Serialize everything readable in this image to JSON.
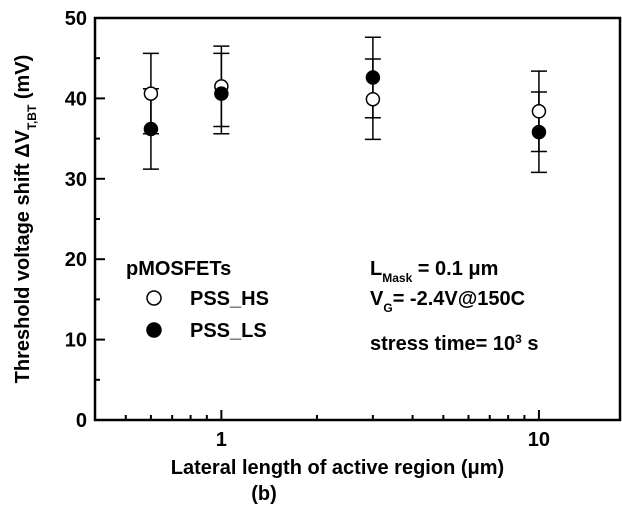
{
  "chart_data": {
    "type": "scatter",
    "xlabel": "Lateral length of active region (μm)",
    "ylabel": [
      {
        "text": "Threshold voltage shift ΔV"
      },
      {
        "text": "T,BT",
        "style": "sub"
      },
      {
        "text": " (mV)"
      }
    ],
    "caption": "(b)",
    "legend_title": "pMOSFETs",
    "xlog": true,
    "xlim": [
      0.4,
      18
    ],
    "ylim": [
      0,
      50
    ],
    "xticks": [
      1,
      10
    ],
    "xminor_ticks": [
      0.4,
      0.5,
      0.6,
      0.7,
      0.8,
      0.9,
      2,
      3,
      4,
      5,
      6,
      7,
      8,
      9
    ],
    "yticks": [
      0,
      10,
      20,
      30,
      40,
      50
    ],
    "yminor_ticks": [
      5,
      15,
      25,
      35,
      45
    ],
    "series": [
      {
        "name": "PSS_HS",
        "marker": "open",
        "color": "#000000",
        "x": [
          0.6,
          1,
          3,
          10
        ],
        "values": [
          40.6,
          41.5,
          39.9,
          38.4
        ],
        "errors": [
          5,
          5,
          5,
          5
        ]
      },
      {
        "name": "PSS_LS",
        "marker": "filled",
        "color": "#000000",
        "x": [
          0.6,
          1,
          3,
          10
        ],
        "values": [
          36.2,
          40.6,
          42.6,
          35.8
        ],
        "errors": [
          5,
          5,
          5,
          5
        ]
      }
    ],
    "annotations": [
      [
        {
          "text": "L"
        },
        {
          "text": "Mask",
          "style": "sub"
        },
        {
          "text": " = 0.1 μm"
        }
      ],
      [
        {
          "text": "V"
        },
        {
          "text": "G",
          "style": "sub"
        },
        {
          "text": "= -2.4V@150C"
        }
      ],
      [
        {
          "text": "stress time= 10"
        },
        {
          "text": "3",
          "style": "sup"
        },
        {
          "text": " s"
        }
      ]
    ]
  }
}
